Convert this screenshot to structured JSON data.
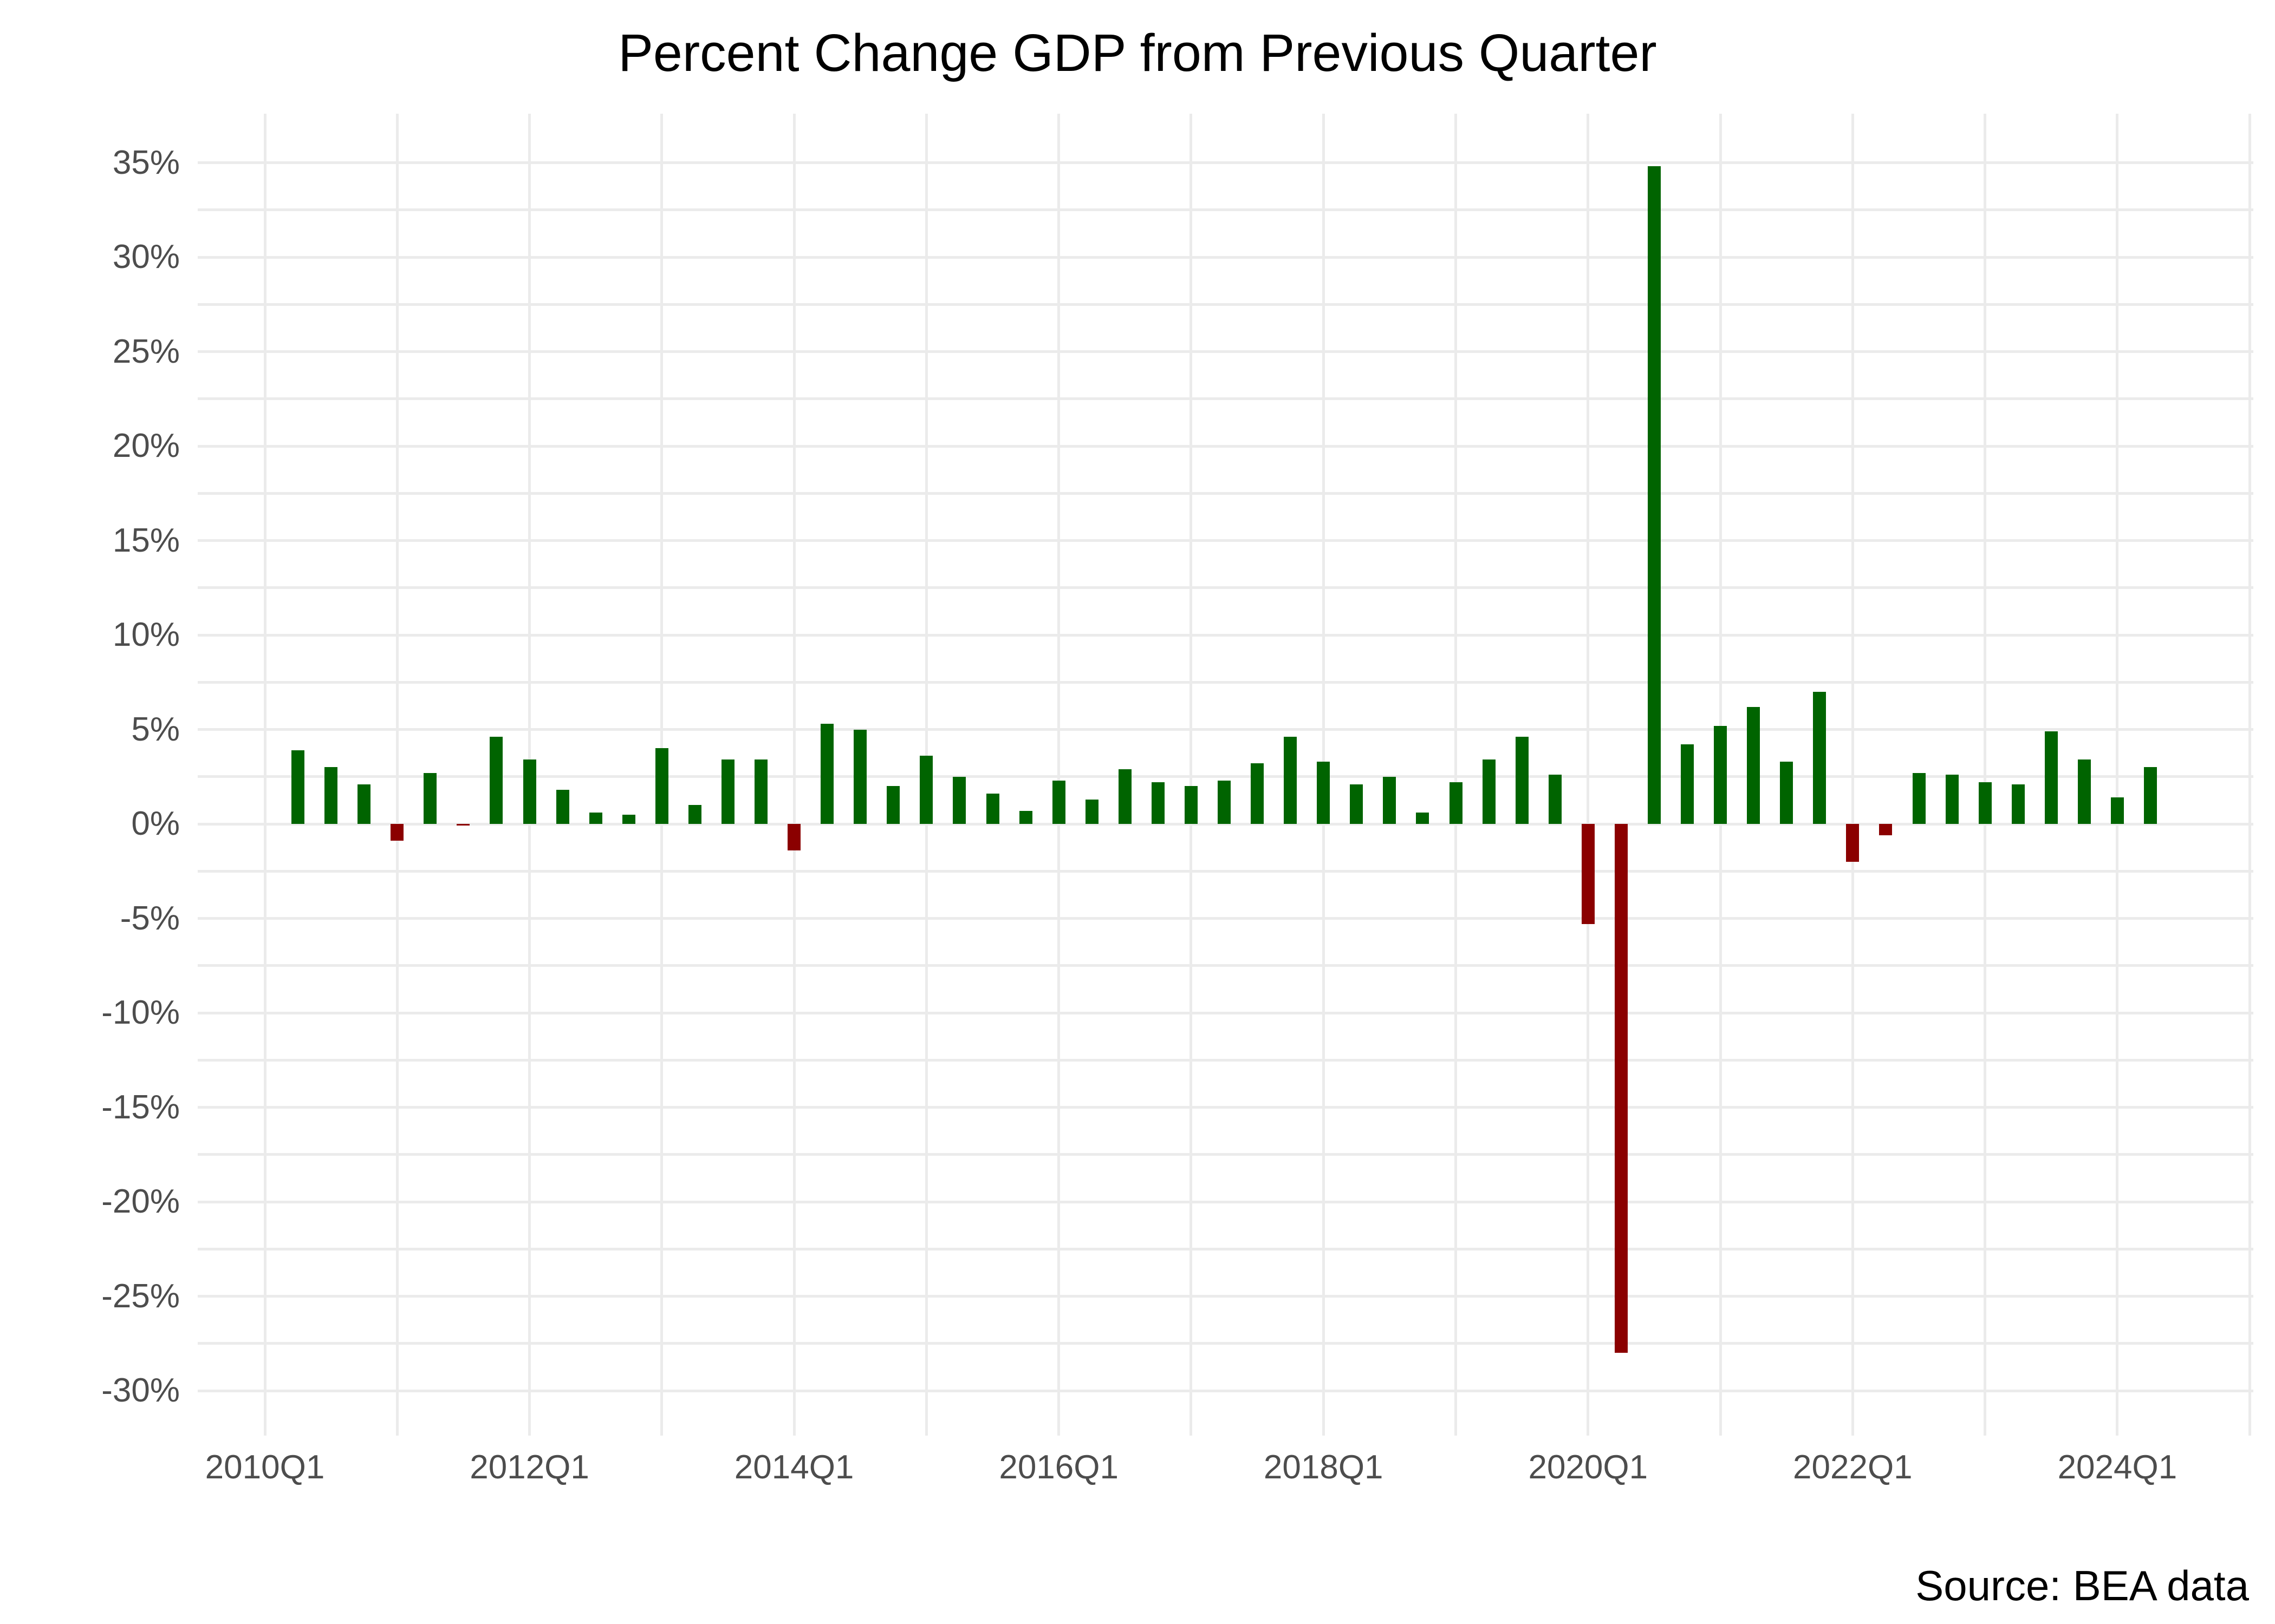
{
  "title": "Percent Change GDP from Previous Quarter",
  "source_note": "Source: BEA data",
  "colors": {
    "positive_bar": "#006400",
    "negative_bar": "#8B0000",
    "gridline": "#EBEBEB",
    "axis_text": "#4D4D4D",
    "title_text": "#000000"
  },
  "y_axis": {
    "tick_values": [
      35,
      30,
      25,
      20,
      15,
      10,
      5,
      0,
      -5,
      -10,
      -15,
      -20,
      -25,
      -30
    ],
    "tick_labels": [
      "35%",
      "30%",
      "25%",
      "20%",
      "15%",
      "10%",
      "5%",
      "0%",
      "-5%",
      "-10%",
      "-15%",
      "-20%",
      "-25%",
      "-30%"
    ],
    "minor_tick_values": [
      32.5,
      27.5,
      22.5,
      17.5,
      12.5,
      7.5,
      2.5,
      -2.5,
      -7.5,
      -12.5,
      -17.5,
      -22.5,
      -27.5
    ]
  },
  "x_axis": {
    "tick_labels": [
      "2010Q1",
      "2012Q1",
      "2014Q1",
      "2016Q1",
      "2018Q1",
      "2020Q1",
      "2022Q1",
      "2024Q1"
    ],
    "tick_years": [
      2010,
      2012,
      2014,
      2016,
      2018,
      2020,
      2022,
      2024
    ],
    "gridline_years": [
      2010,
      2011,
      2012,
      2013,
      2014,
      2015,
      2016,
      2017,
      2018,
      2019,
      2020,
      2021,
      2022,
      2023,
      2024,
      2025
    ]
  },
  "chart_data": {
    "type": "bar",
    "title": "Percent Change GDP from Previous Quarter",
    "xlabel": "",
    "ylabel": "",
    "ylim": [
      -32,
      37.5
    ],
    "grid": "on",
    "legend": "none",
    "positive_color": "#006400",
    "negative_color": "#8B0000",
    "categories": [
      "2010Q2",
      "2010Q3",
      "2010Q4",
      "2011Q1",
      "2011Q2",
      "2011Q3",
      "2011Q4",
      "2012Q1",
      "2012Q2",
      "2012Q3",
      "2012Q4",
      "2013Q1",
      "2013Q2",
      "2013Q3",
      "2013Q4",
      "2014Q1",
      "2014Q2",
      "2014Q3",
      "2014Q4",
      "2015Q1",
      "2015Q2",
      "2015Q3",
      "2015Q4",
      "2016Q1",
      "2016Q2",
      "2016Q3",
      "2016Q4",
      "2017Q1",
      "2017Q2",
      "2017Q3",
      "2017Q4",
      "2018Q1",
      "2018Q2",
      "2018Q3",
      "2018Q4",
      "2019Q1",
      "2019Q2",
      "2019Q3",
      "2019Q4",
      "2020Q1",
      "2020Q2",
      "2020Q3",
      "2020Q4",
      "2021Q1",
      "2021Q2",
      "2021Q3",
      "2021Q4",
      "2022Q1",
      "2022Q2",
      "2022Q3",
      "2022Q4",
      "2023Q1",
      "2023Q2",
      "2023Q3",
      "2023Q4",
      "2024Q1",
      "2024Q2"
    ],
    "values": [
      3.9,
      3.0,
      2.1,
      -0.9,
      2.7,
      -0.1,
      4.6,
      3.4,
      1.8,
      0.6,
      0.5,
      4.0,
      1.0,
      3.4,
      3.4,
      -1.4,
      5.3,
      5.0,
      2.0,
      3.6,
      2.5,
      1.6,
      0.7,
      2.3,
      1.3,
      2.9,
      2.2,
      2.0,
      2.3,
      3.2,
      4.6,
      3.3,
      2.1,
      2.5,
      0.6,
      2.2,
      3.4,
      4.6,
      2.6,
      -5.3,
      -28.0,
      34.8,
      4.2,
      5.2,
      6.2,
      3.3,
      7.0,
      -2.0,
      -0.6,
      2.7,
      2.6,
      2.2,
      2.1,
      4.9,
      3.4,
      1.4,
      3.0
    ]
  }
}
